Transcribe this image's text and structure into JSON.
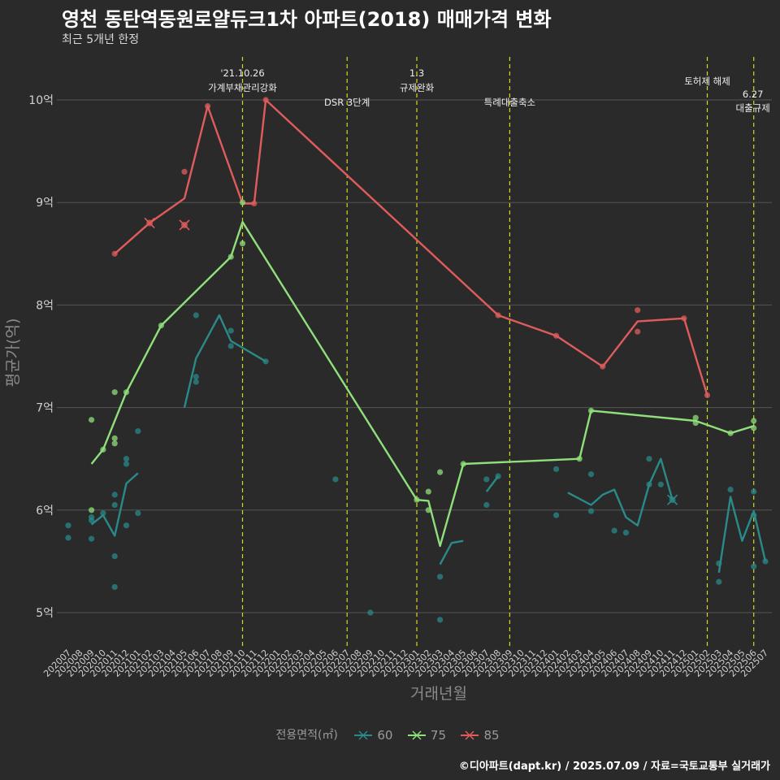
{
  "title": "영천 동탄역동원로얄듀크1차 아파트(2018) 매매가격 변화",
  "subtitle": "최근 5개년 한정",
  "caption": "©디아파트(dapt.kr) / 2025.07.09 / 자료=국토교통부 실거래가",
  "legend_title": "전용면적(㎡)",
  "colors": {
    "background": "#2b2a2b",
    "grid": "#555555",
    "event_line": "#d4d81e",
    "60": "#2a8a8a",
    "75": "#8fe07a",
    "85": "#e05c5c"
  },
  "chart_data": {
    "type": "line",
    "xlabel": "거래년월",
    "ylabel": "평균가(억)",
    "ylim": [
      4.7,
      10.5
    ],
    "y_ticks": [
      5,
      6,
      7,
      8,
      9,
      10
    ],
    "y_tick_labels": [
      "5억",
      "6억",
      "7억",
      "8억",
      "9억",
      "10억"
    ],
    "grid": true,
    "legend_position": "bottom",
    "categories": [
      "202007",
      "202008",
      "202009",
      "202010",
      "202011",
      "202012",
      "202101",
      "202102",
      "202103",
      "202104",
      "202105",
      "202106",
      "202107",
      "202108",
      "202109",
      "202110",
      "202111",
      "202112",
      "202201",
      "202202",
      "202203",
      "202204",
      "202205",
      "202206",
      "202207",
      "202208",
      "202209",
      "202210",
      "202211",
      "202212",
      "202301",
      "202302",
      "202303",
      "202304",
      "202305",
      "202306",
      "202307",
      "202308",
      "202309",
      "202310",
      "202311",
      "202312",
      "202401",
      "202402",
      "202403",
      "202404",
      "202405",
      "202406",
      "202407",
      "202408",
      "202409",
      "202410",
      "202411",
      "202412",
      "202501",
      "202502",
      "202503",
      "202504",
      "202505",
      "202506",
      "202507"
    ],
    "events": [
      {
        "date": "202110",
        "label": "'21.10.26\n가계부채관리강화"
      },
      {
        "date": "202207",
        "label": "DSR 3단계"
      },
      {
        "date": "202301",
        "label": "1.3\n규제완화"
      },
      {
        "date": "202309",
        "label": "특례대출축소"
      },
      {
        "date": "202502",
        "label": "토허제 해제"
      },
      {
        "date": "202506",
        "label": "6.27\n대출규제"
      }
    ],
    "series": [
      {
        "name": "60",
        "line_segments": [
          [
            [
              "202009",
              5.86
            ],
            [
              "202010",
              5.95
            ],
            [
              "202011",
              5.75
            ],
            [
              "202012",
              6.26
            ],
            [
              "202101",
              6.36
            ]
          ],
          [
            [
              "202105",
              7.0
            ],
            [
              "202106",
              7.48
            ],
            [
              "202108",
              7.9
            ],
            [
              "202109",
              7.65
            ],
            [
              "202112",
              7.45
            ]
          ],
          [
            [
              "202303",
              5.47
            ],
            [
              "202304",
              5.68
            ],
            [
              "202305",
              5.7
            ]
          ],
          [
            [
              "202307",
              6.18
            ],
            [
              "202308",
              6.33
            ]
          ],
          [
            [
              "202402",
              6.17
            ],
            [
              "202404",
              6.05
            ],
            [
              "202405",
              6.15
            ],
            [
              "202406",
              6.2
            ],
            [
              "202407",
              5.93
            ],
            [
              "202408",
              5.85
            ],
            [
              "202409",
              6.25
            ],
            [
              "202410",
              6.5
            ],
            [
              "202411",
              6.1
            ]
          ],
          [
            [
              "202503",
              5.39
            ],
            [
              "202504",
              6.13
            ],
            [
              "202505",
              5.7
            ],
            [
              "202506",
              5.99
            ],
            [
              "202507",
              5.5
            ]
          ]
        ],
        "points": [
          [
            "202007",
            5.85
          ],
          [
            "202007",
            5.73
          ],
          [
            "202009",
            5.93
          ],
          [
            "202009",
            5.9
          ],
          [
            "202009",
            5.72
          ],
          [
            "202010",
            5.97
          ],
          [
            "202011",
            6.15
          ],
          [
            "202011",
            6.05
          ],
          [
            "202011",
            5.55
          ],
          [
            "202011",
            5.25
          ],
          [
            "202012",
            6.5
          ],
          [
            "202012",
            6.45
          ],
          [
            "202012",
            5.85
          ],
          [
            "202101",
            6.77
          ],
          [
            "202101",
            5.97
          ],
          [
            "202106",
            7.9
          ],
          [
            "202106",
            7.3
          ],
          [
            "202106",
            7.25
          ],
          [
            "202109",
            7.75
          ],
          [
            "202109",
            7.6
          ],
          [
            "202112",
            7.45
          ],
          [
            "202206",
            6.3
          ],
          [
            "202209",
            5.0
          ],
          [
            "202303",
            5.35
          ],
          [
            "202303",
            4.93
          ],
          [
            "202307",
            6.05
          ],
          [
            "202307",
            6.3
          ],
          [
            "202308",
            6.33
          ],
          [
            "202401",
            6.4
          ],
          [
            "202401",
            5.95
          ],
          [
            "202404",
            6.35
          ],
          [
            "202404",
            5.99
          ],
          [
            "202406",
            5.8
          ],
          [
            "202407",
            5.78
          ],
          [
            "202409",
            6.25
          ],
          [
            "202409",
            6.5
          ],
          [
            "202410",
            6.25
          ],
          [
            "202503",
            5.48
          ],
          [
            "202503",
            5.3
          ],
          [
            "202504",
            6.2
          ],
          [
            "202506",
            6.18
          ],
          [
            "202506",
            5.95
          ],
          [
            "202506",
            5.45
          ],
          [
            "202507",
            5.5
          ]
        ],
        "cross_points": [
          [
            "202411",
            6.1
          ]
        ]
      },
      {
        "name": "75",
        "line_segments": [
          [
            [
              "202009",
              6.45
            ],
            [
              "202010",
              6.59
            ],
            [
              "202012",
              7.15
            ],
            [
              "202103",
              7.8
            ],
            [
              "202109",
              8.47
            ],
            [
              "202110",
              8.81
            ],
            [
              "202301",
              6.1
            ],
            [
              "202302",
              6.09
            ],
            [
              "202303",
              5.65
            ],
            [
              "202305",
              6.45
            ],
            [
              "202403",
              6.5
            ],
            [
              "202404",
              6.97
            ],
            [
              "202501",
              6.87
            ],
            [
              "202504",
              6.75
            ],
            [
              "202506",
              6.82
            ]
          ]
        ],
        "points": [
          [
            "202009",
            6.88
          ],
          [
            "202009",
            6.0
          ],
          [
            "202010",
            6.59
          ],
          [
            "202011",
            7.15
          ],
          [
            "202011",
            6.7
          ],
          [
            "202011",
            6.65
          ],
          [
            "202012",
            7.15
          ],
          [
            "202103",
            7.8
          ],
          [
            "202109",
            8.47
          ],
          [
            "202110",
            9.0
          ],
          [
            "202110",
            8.6
          ],
          [
            "202301",
            6.1
          ],
          [
            "202302",
            6.18
          ],
          [
            "202302",
            6.0
          ],
          [
            "202303",
            6.37
          ],
          [
            "202305",
            6.45
          ],
          [
            "202403",
            6.5
          ],
          [
            "202404",
            6.97
          ],
          [
            "202501",
            6.9
          ],
          [
            "202501",
            6.85
          ],
          [
            "202504",
            6.75
          ],
          [
            "202506",
            6.87
          ],
          [
            "202506",
            6.8
          ]
        ],
        "cross_points": []
      },
      {
        "name": "85",
        "line_segments": [
          [
            [
              "202011",
              8.5
            ],
            [
              "202102",
              8.8
            ],
            [
              "202105",
              9.04
            ],
            [
              "202107",
              9.94
            ],
            [
              "202110",
              8.99
            ],
            [
              "202111",
              8.99
            ],
            [
              "202112",
              10.0
            ],
            [
              "202308",
              7.9
            ],
            [
              "202401",
              7.7
            ],
            [
              "202405",
              7.4
            ],
            [
              "202408",
              7.84
            ],
            [
              "202412",
              7.87
            ],
            [
              "202502",
              7.12
            ]
          ]
        ],
        "points": [
          [
            "202011",
            8.5
          ],
          [
            "202105",
            9.3
          ],
          [
            "202107",
            9.94
          ],
          [
            "202111",
            8.99
          ],
          [
            "202112",
            10.0
          ],
          [
            "202308",
            7.9
          ],
          [
            "202401",
            7.7
          ],
          [
            "202405",
            7.4
          ],
          [
            "202408",
            7.95
          ],
          [
            "202408",
            7.74
          ],
          [
            "202412",
            7.87
          ],
          [
            "202502",
            7.12
          ]
        ],
        "cross_points": [
          [
            "202102",
            8.8
          ],
          [
            "202105",
            8.78
          ]
        ]
      }
    ]
  }
}
